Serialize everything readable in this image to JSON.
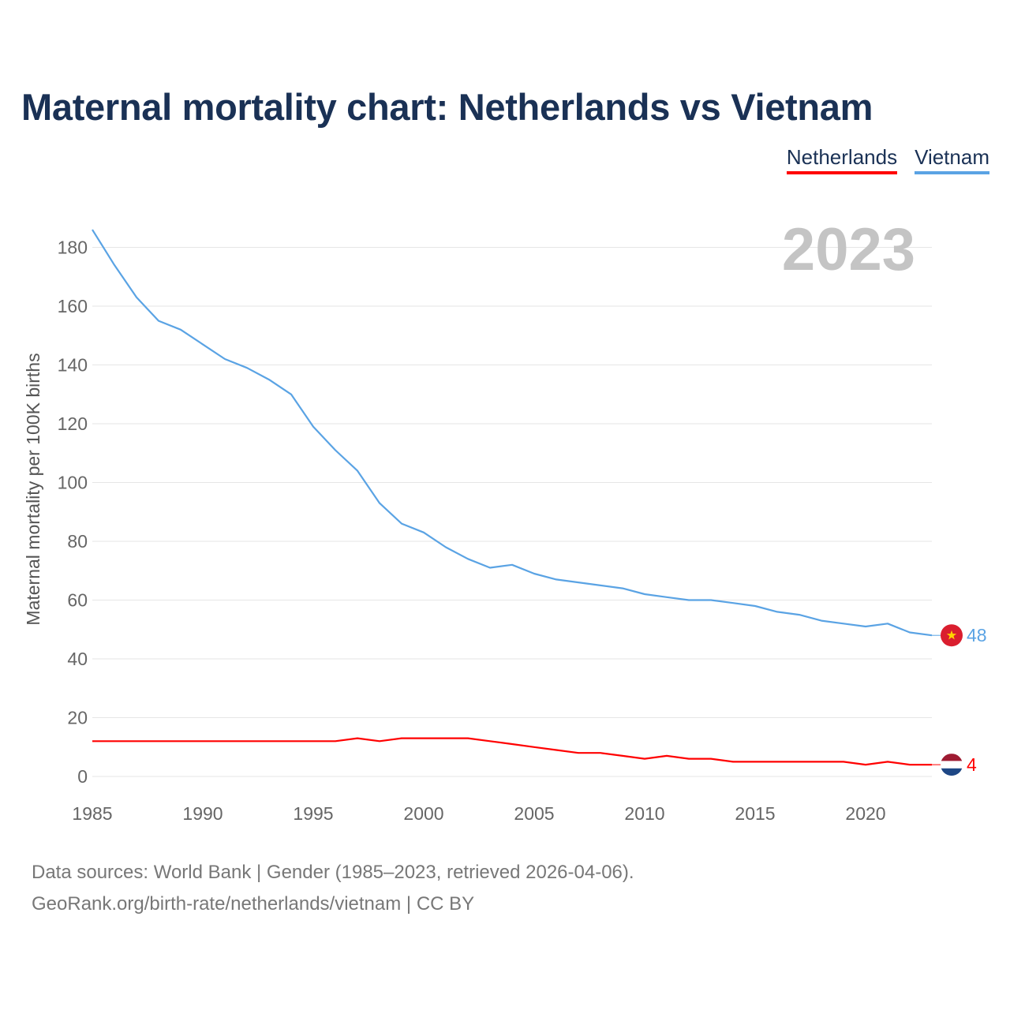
{
  "title": "Maternal mortality chart: Netherlands vs Vietnam",
  "legend": {
    "netherlands": "Netherlands",
    "vietnam": "Vietnam"
  },
  "footer": {
    "line1": "Data sources: World Bank | Gender (1985–2023, retrieved 2026-04-06).",
    "line2": "GeoRank.org/birth-rate/netherlands/vietnam | CC BY"
  },
  "chart_data": {
    "type": "line",
    "year_label": "2023",
    "ylabel": "Maternal mortality per 100K births",
    "xlabel": "",
    "xlim": [
      1985,
      2023
    ],
    "ylim": [
      0,
      190
    ],
    "yticks": [
      0,
      20,
      40,
      60,
      80,
      100,
      120,
      140,
      160,
      180
    ],
    "xticks": [
      1985,
      1990,
      1995,
      2000,
      2005,
      2010,
      2015,
      2020
    ],
    "x": [
      1985,
      1986,
      1987,
      1988,
      1989,
      1990,
      1991,
      1992,
      1993,
      1994,
      1995,
      1996,
      1997,
      1998,
      1999,
      2000,
      2001,
      2002,
      2003,
      2004,
      2005,
      2006,
      2007,
      2008,
      2009,
      2010,
      2011,
      2012,
      2013,
      2014,
      2015,
      2016,
      2017,
      2018,
      2019,
      2020,
      2021,
      2022,
      2023
    ],
    "series": [
      {
        "name": "Vietnam",
        "color": "#5aa3e4",
        "end_label": "48",
        "flag": "vietnam-flag",
        "values": [
          186,
          174,
          163,
          155,
          152,
          147,
          142,
          139,
          135,
          130,
          119,
          111,
          104,
          93,
          86,
          83,
          78,
          74,
          71,
          72,
          69,
          67,
          66,
          65,
          64,
          62,
          61,
          60,
          60,
          59,
          58,
          56,
          55,
          53,
          52,
          51,
          52,
          49,
          48
        ]
      },
      {
        "name": "Netherlands",
        "color": "#ff0000",
        "end_label": "4",
        "flag": "netherlands-flag",
        "values": [
          12,
          12,
          12,
          12,
          12,
          12,
          12,
          12,
          12,
          12,
          12,
          12,
          13,
          12,
          13,
          13,
          13,
          13,
          12,
          11,
          10,
          9,
          8,
          8,
          7,
          6,
          7,
          6,
          6,
          5,
          5,
          5,
          5,
          5,
          5,
          4,
          5,
          4,
          4
        ]
      }
    ]
  }
}
